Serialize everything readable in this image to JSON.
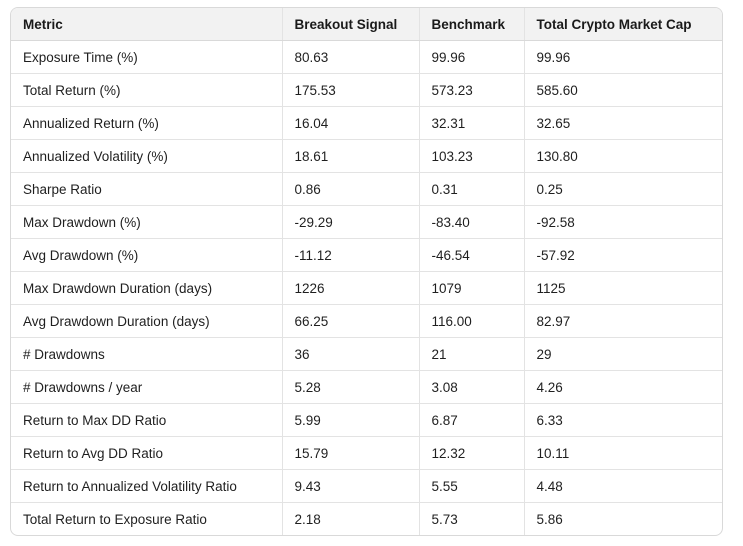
{
  "table": {
    "headers": [
      "Metric",
      "Breakout Signal",
      "Benchmark",
      "Total Crypto Market Cap"
    ],
    "rows": [
      [
        "Exposure Time (%)",
        "80.63",
        "99.96",
        "99.96"
      ],
      [
        "Total Return (%)",
        "175.53",
        "573.23",
        "585.60"
      ],
      [
        "Annualized Return (%)",
        "16.04",
        "32.31",
        "32.65"
      ],
      [
        "Annualized Volatility (%)",
        "18.61",
        "103.23",
        "130.80"
      ],
      [
        "Sharpe Ratio",
        "0.86",
        "0.31",
        "0.25"
      ],
      [
        "Max Drawdown (%)",
        "-29.29",
        "-83.40",
        "-92.58"
      ],
      [
        "Avg Drawdown (%)",
        "-11.12",
        "-46.54",
        "-57.92"
      ],
      [
        "Max Drawdown Duration (days)",
        "1226",
        "1079",
        "1125"
      ],
      [
        "Avg Drawdown Duration (days)",
        "66.25",
        "116.00",
        "82.97"
      ],
      [
        "# Drawdowns",
        "36",
        "21",
        "29"
      ],
      [
        "# Drawdowns / year",
        "5.28",
        "3.08",
        "4.26"
      ],
      [
        "Return to Max DD Ratio",
        "5.99",
        "6.87",
        "6.33"
      ],
      [
        "Return to Avg DD Ratio",
        "15.79",
        "12.32",
        "10.11"
      ],
      [
        "Return to Annualized Volatility Ratio",
        "9.43",
        "5.55",
        "4.48"
      ],
      [
        "Total Return to Exposure Ratio",
        "2.18",
        "5.73",
        "5.86"
      ]
    ]
  }
}
